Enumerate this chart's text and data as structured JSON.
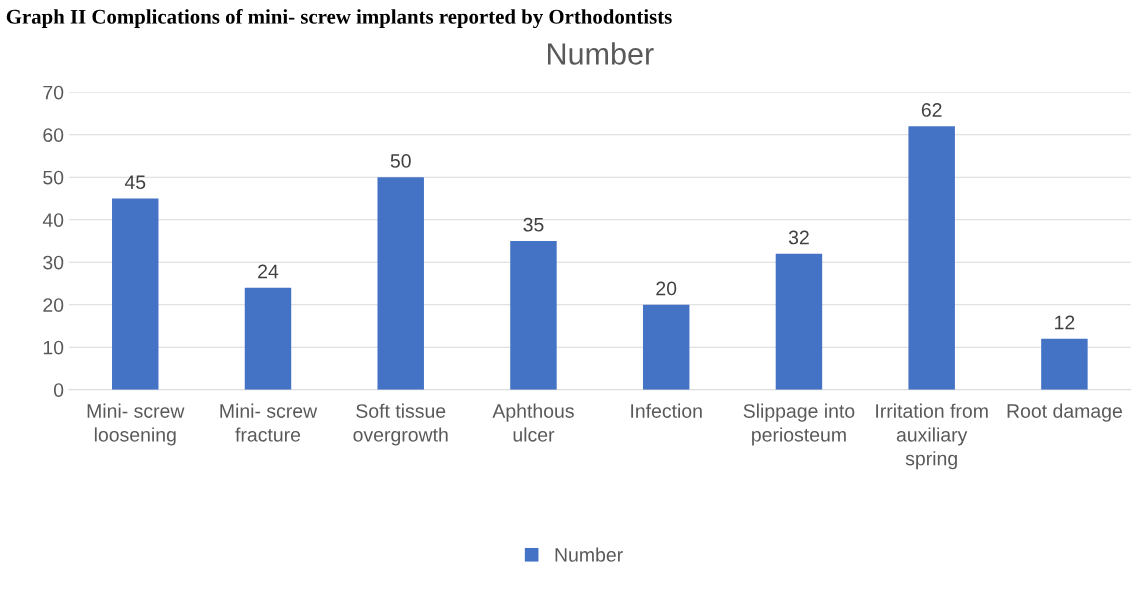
{
  "chart_data": {
    "type": "bar",
    "title": "Number",
    "annotations": [
      "Graph II Complications of mini- screw implants reported by Orthodontists"
    ],
    "categories": [
      "Mini- screw loosening",
      "Mini- screw fracture",
      "Soft tissue overgrowth",
      "Aphthous ulcer",
      "Infection",
      "Slippage into periosteum",
      "Irritation from auxiliary spring",
      "Root damage"
    ],
    "series": [
      {
        "name": "Number",
        "color": "#4472c4",
        "values": [
          45,
          24,
          50,
          35,
          20,
          32,
          62,
          12
        ]
      }
    ],
    "ylim": [
      0,
      70
    ],
    "yticks": [
      0,
      10,
      20,
      30,
      40,
      50,
      60,
      70
    ],
    "grid": "y",
    "legend": "bottom",
    "data_labels": true
  }
}
